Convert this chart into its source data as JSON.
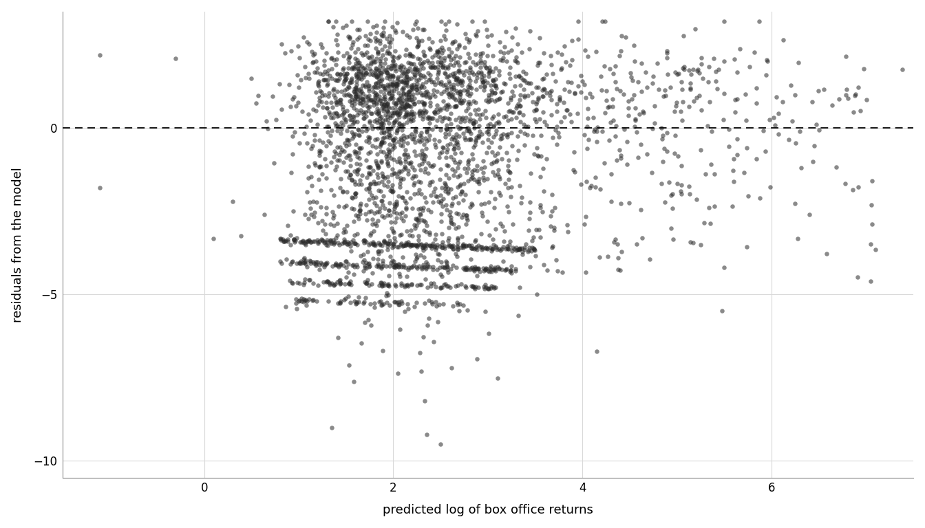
{
  "title": "",
  "xlabel": "predicted log of box office returns",
  "ylabel": "residuals from the model",
  "xlim": [
    -1.5,
    7.5
  ],
  "ylim": [
    -10.5,
    3.5
  ],
  "xticks": [
    0,
    2,
    4,
    6
  ],
  "yticks": [
    -10,
    -5,
    0
  ],
  "hline_y": 0,
  "background_color": "#ffffff",
  "grid_color": "#d9d9d9",
  "point_color": "#2a2a2a",
  "point_alpha": 0.55,
  "point_size": 22,
  "n_points": 2500,
  "seed": 42
}
